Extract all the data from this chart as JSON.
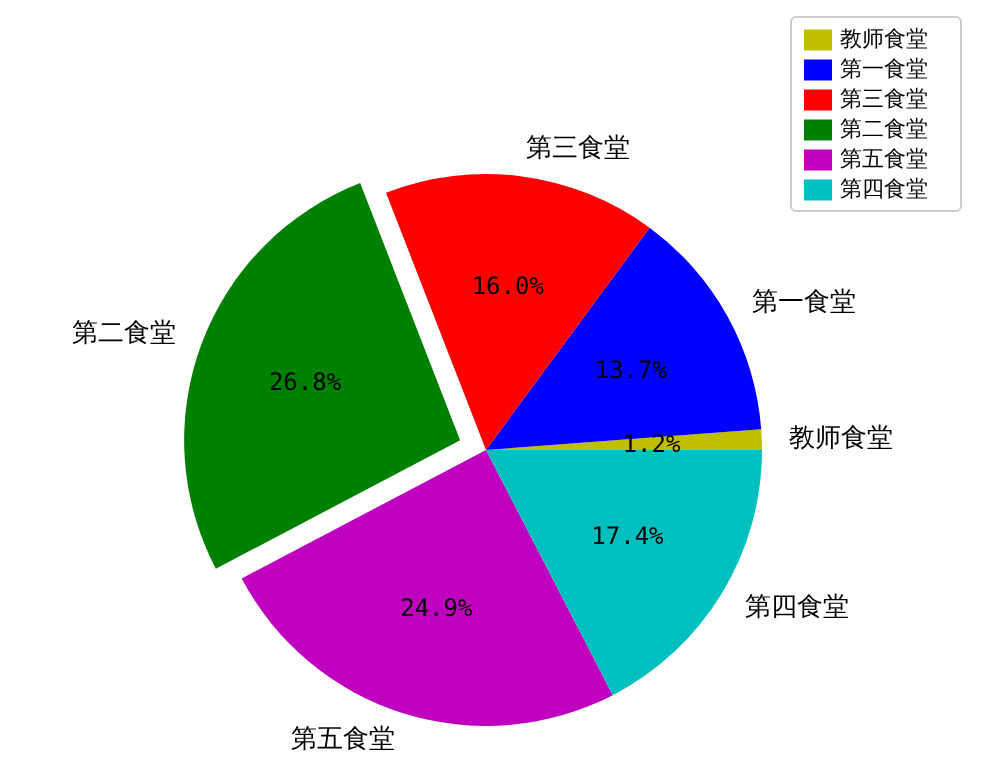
{
  "chart_data": {
    "type": "pie",
    "categories": [
      "教师食堂",
      "第一食堂",
      "第三食堂",
      "第二食堂",
      "第五食堂",
      "第四食堂"
    ],
    "values": [
      1.2,
      13.7,
      16.0,
      26.8,
      24.9,
      17.4
    ],
    "colors": [
      "#bfbf00",
      "#0000ff",
      "#ff0000",
      "#008000",
      "#bf00bf",
      "#00bfbf"
    ],
    "value_labels": [
      "1.2%",
      "13.7%",
      "16.0%",
      "26.8%",
      "24.9%",
      "17.4%"
    ],
    "legend": "top right"
  }
}
